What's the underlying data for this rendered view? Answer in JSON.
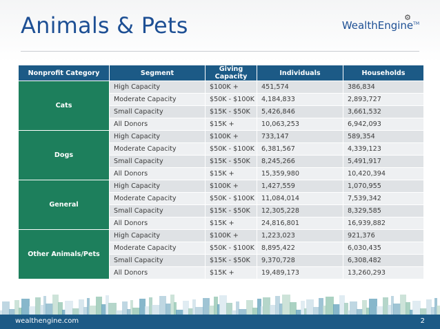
{
  "title": "Animals & Pets",
  "logo": "WealthEngine",
  "columns": [
    "Nonprofit Category",
    "Segment",
    "Giving Capacity",
    "Individuals",
    "Households"
  ],
  "groups": [
    {
      "category": "Cats",
      "rows": [
        {
          "segment": "High Capacity",
          "capacity": "$100K +",
          "individuals": "451,574",
          "households": "386,834"
        },
        {
          "segment": "Moderate Capacity",
          "capacity": "$50K - $100K",
          "individuals": "4,184,833",
          "households": "2,893,727"
        },
        {
          "segment": "Small Capacity",
          "capacity": "$15K - $50K",
          "individuals": "5,426,846",
          "households": "3,661,532"
        },
        {
          "segment": "All Donors",
          "capacity": "$15K +",
          "individuals": "10,063,253",
          "households": "6,942,093"
        }
      ]
    },
    {
      "category": "Dogs",
      "rows": [
        {
          "segment": "High Capacity",
          "capacity": "$100K +",
          "individuals": "733,147",
          "households": "589,354"
        },
        {
          "segment": "Moderate Capacity",
          "capacity": "$50K - $100K",
          "individuals": "6,381,567",
          "households": "4,339,123"
        },
        {
          "segment": "Small Capacity",
          "capacity": "$15K - $50K",
          "individuals": "8,245,266",
          "households": "5,491,917"
        },
        {
          "segment": "All Donors",
          "capacity": "$15K +",
          "individuals": "15,359,980",
          "households": "10,420,394"
        }
      ]
    },
    {
      "category": "General",
      "rows": [
        {
          "segment": "High Capacity",
          "capacity": "$100K +",
          "individuals": "1,427,559",
          "households": "1,070,955"
        },
        {
          "segment": "Moderate Capacity",
          "capacity": "$50K - $100K",
          "individuals": "11,084,014",
          "households": "7,539,342"
        },
        {
          "segment": "Small Capacity",
          "capacity": "$15K - $50K",
          "individuals": "12,305,228",
          "households": "8,329,585"
        },
        {
          "segment": "All Donors",
          "capacity": "$15K +",
          "individuals": "24,816,801",
          "households": "16,939,882"
        }
      ]
    },
    {
      "category": "Other Animals/Pets",
      "rows": [
        {
          "segment": "High Capacity",
          "capacity": "$100K +",
          "individuals": "1,223,023",
          "households": "921,376"
        },
        {
          "segment": "Moderate Capacity",
          "capacity": "$50K - $100K",
          "individuals": "8,895,422",
          "households": "6,030,435"
        },
        {
          "segment": "Small Capacity",
          "capacity": "$15K - $50K",
          "individuals": "9,370,728",
          "households": "6,308,482"
        },
        {
          "segment": "All Donors",
          "capacity": "$15K +",
          "individuals": "19,489,173",
          "households": "13,260,293"
        }
      ]
    }
  ],
  "footer": {
    "url": "wealthengine.com",
    "page": "2"
  },
  "colors": {
    "header": "#1c5a86",
    "category": "#1d7f5c",
    "title": "#1d4f94"
  },
  "icons": {
    "logo_mark": "gear-icon"
  }
}
